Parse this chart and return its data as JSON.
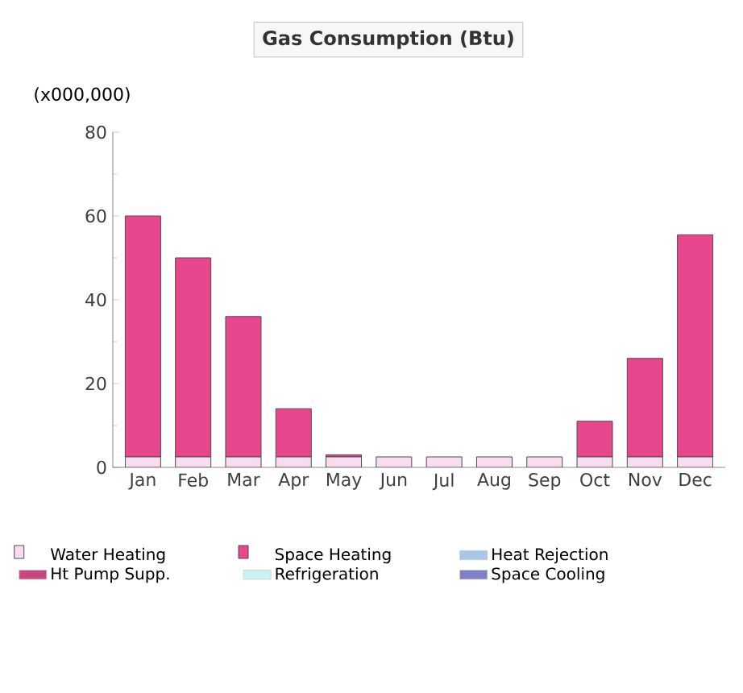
{
  "chart_data": {
    "type": "bar",
    "title": "Gas Consumption (Btu)",
    "ylabel": "(x000,000)",
    "categories": [
      "Jan",
      "Feb",
      "Mar",
      "Apr",
      "May",
      "Jun",
      "Jul",
      "Aug",
      "Sep",
      "Oct",
      "Nov",
      "Dec"
    ],
    "stacked": true,
    "ylim": [
      0,
      80
    ],
    "yticks": [
      0,
      20,
      40,
      60,
      80
    ],
    "legend": "bottom",
    "series": [
      {
        "name": "Water Heating",
        "color": "#f9dcef",
        "values": [
          2.5,
          2.5,
          2.5,
          2.5,
          2.5,
          2.5,
          2.5,
          2.5,
          2.5,
          2.5,
          2.5,
          2.5
        ]
      },
      {
        "name": "Ht Pump Supp.",
        "color": "#c8457f",
        "values": [
          0,
          0,
          0,
          0,
          0,
          0,
          0,
          0,
          0,
          0,
          0,
          0
        ]
      },
      {
        "name": "Space Heating",
        "color": "#e8478e",
        "values": [
          57.5,
          47.5,
          33.5,
          11.5,
          0.5,
          0,
          0,
          0,
          0,
          8.5,
          23.5,
          53
        ]
      },
      {
        "name": "Refrigeration",
        "color": "#c9f2f5",
        "values": [
          0,
          0,
          0,
          0,
          0,
          0,
          0,
          0,
          0,
          0,
          0,
          0
        ]
      },
      {
        "name": "Heat Rejection",
        "color": "#a9c6e8",
        "values": [
          0,
          0,
          0,
          0,
          0,
          0,
          0,
          0,
          0,
          0,
          0,
          0
        ]
      },
      {
        "name": "Space Cooling",
        "color": "#7e7fc4",
        "values": [
          0,
          0,
          0,
          0,
          0,
          0,
          0,
          0,
          0,
          0,
          0,
          0
        ]
      }
    ]
  }
}
